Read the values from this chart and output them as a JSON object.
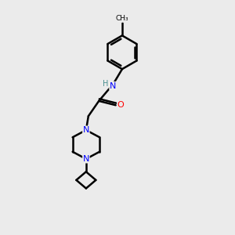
{
  "bg_color": "#ebebeb",
  "atom_colors": {
    "C": "#000000",
    "N": "#0000ff",
    "O": "#ff0000",
    "H": "#4a9090"
  },
  "bond_color": "#000000",
  "bond_width": 1.8,
  "figsize": [
    3.0,
    3.0
  ],
  "dpi": 100
}
